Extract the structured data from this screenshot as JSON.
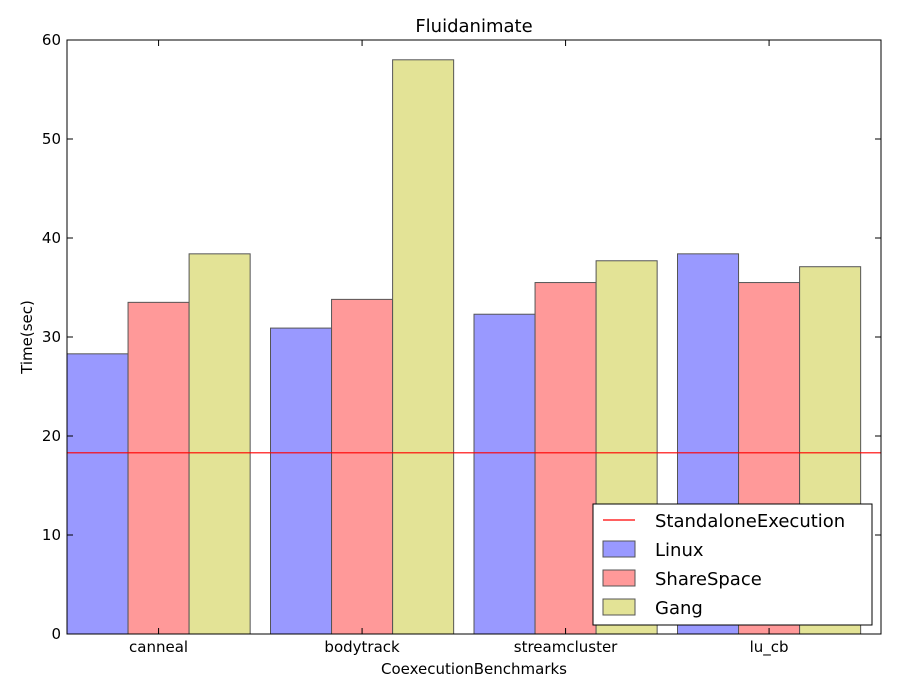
{
  "chart_data": {
    "type": "bar",
    "title": "Fluidanimate",
    "xlabel": "CoexecutionBenchmarks",
    "ylabel": "Time(sec)",
    "ylim": [
      0,
      60
    ],
    "yticks": [
      0,
      10,
      20,
      30,
      40,
      50,
      60
    ],
    "categories": [
      "canneal",
      "bodytrack",
      "streamcluster",
      "lu_cb"
    ],
    "series": [
      {
        "name": "Linux",
        "color": "#9999ff",
        "values": [
          28.3,
          30.9,
          32.3,
          38.4
        ]
      },
      {
        "name": "ShareSpace",
        "color": "#ff9999",
        "values": [
          33.5,
          33.8,
          35.5,
          35.5
        ]
      },
      {
        "name": "Gang",
        "color": "#e3e396",
        "values": [
          38.4,
          58.0,
          37.7,
          37.1
        ]
      }
    ],
    "reference_line": {
      "name": "StandaloneExecution",
      "value": 18.3,
      "color": "#ff0000"
    },
    "legend_position": "lower-right",
    "grid": false
  }
}
